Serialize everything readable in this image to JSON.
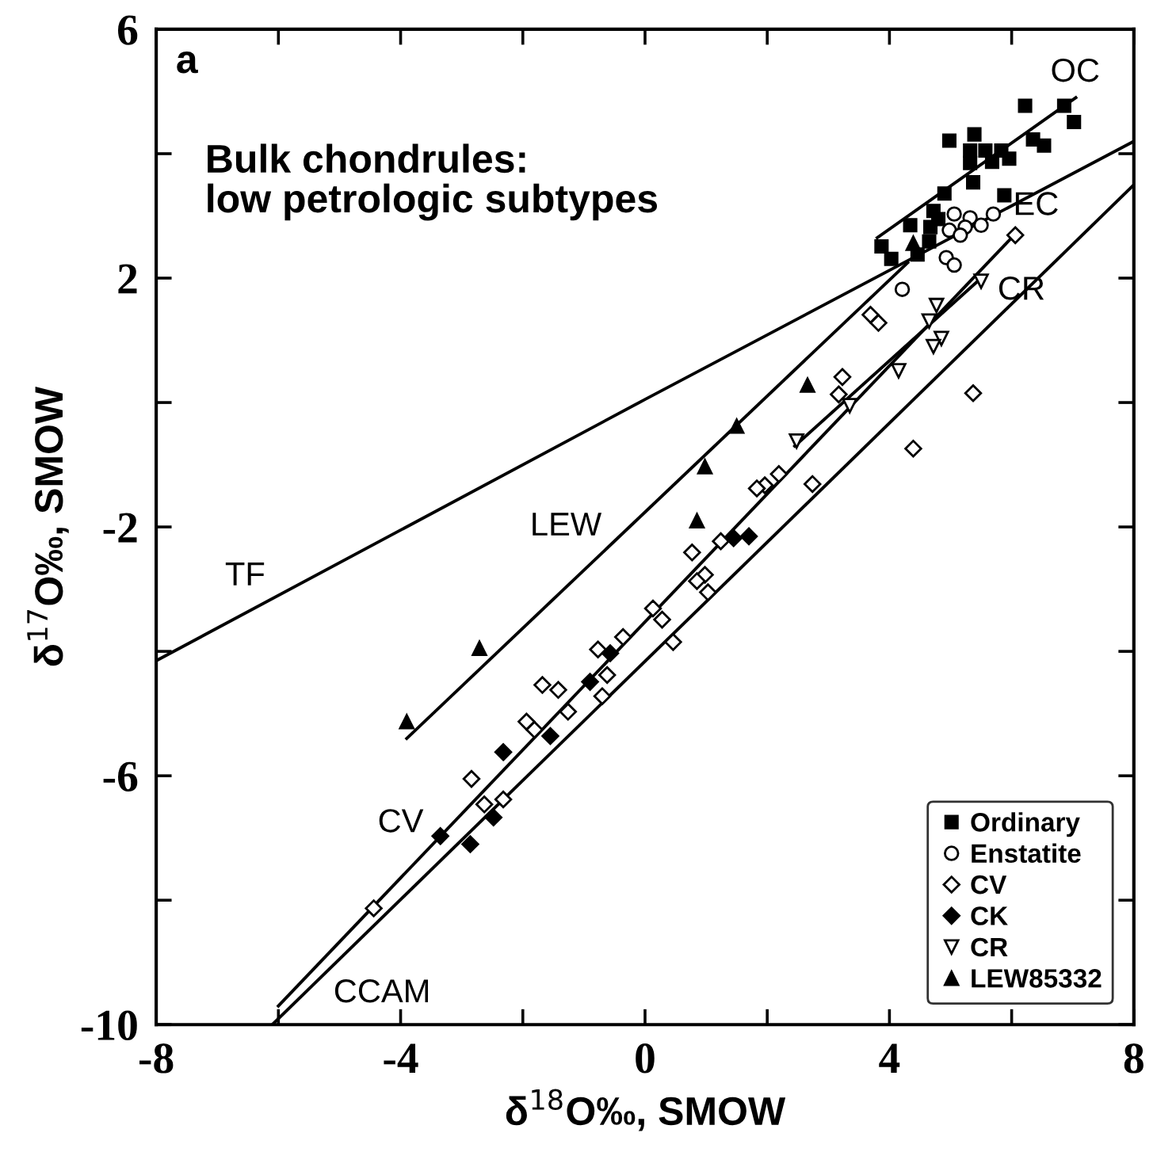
{
  "chart_data": {
    "type": "scatter",
    "title": "a",
    "xlabel": "δ$^{18}$O‰, SMOW",
    "ylabel": "δ$^{17}$O‰, SMOW",
    "xlim": [
      -8,
      8
    ],
    "ylim": [
      -10,
      6
    ],
    "xticks": [
      -8,
      {
        "value": -6,
        "label": null
      },
      -4,
      {
        "value": -2,
        "label": null
      },
      0,
      {
        "value": 2,
        "label": null
      },
      4,
      {
        "value": 6,
        "label": null
      },
      8
    ],
    "yticks": [
      -10,
      {
        "value": -8,
        "label": null
      },
      -6,
      {
        "value": -4,
        "label": null
      },
      -2,
      {
        "value": 0,
        "label": null
      },
      2,
      {
        "value": 4,
        "label": null
      },
      6
    ],
    "grid": false,
    "legend": "bottom right",
    "annotations": [
      "Bulk chondrules:\nlow petrologic subtypes",
      "OC",
      "EC",
      "CR",
      "LEW",
      "TF",
      "CV",
      "CCAM"
    ],
    "series": [
      {
        "type": "line",
        "color": "#000000",
        "marker": "none",
        "x": [
          -8,
          0,
          8
        ],
        "values": [
          -4.15,
          0.05,
          4.2
        ]
      },
      {
        "type": "line",
        "color": "#000000",
        "marker": "none",
        "x": [
          -6.1,
          8
        ],
        "values": [
          -10,
          3.5
        ]
      },
      {
        "type": "line",
        "color": "#000000",
        "marker": "none",
        "x": [
          -6.0,
          6.05
        ],
        "values": [
          -9.7,
          2.7
        ]
      },
      {
        "type": "line",
        "color": "#000000",
        "marker": "none",
        "x": [
          2.45,
          5.5
        ],
        "values": [
          -0.7,
          2.0
        ]
      },
      {
        "type": "line",
        "color": "#000000",
        "marker": "none",
        "x": [
          -3.9,
          4.3
        ],
        "values": [
          -5.4,
          2.25
        ]
      },
      {
        "type": "line",
        "color": "#000000",
        "marker": "none",
        "x": [
          3.8,
          7.05
        ],
        "values": [
          2.65,
          4.9
        ]
      },
      {
        "name": "Ordinary",
        "color": "#000000",
        "marker": "square",
        "x": [
          6.22,
          6.86,
          7.02,
          4.98,
          5.39,
          5.32,
          5.57,
          5.83,
          5.32,
          5.68,
          5.96,
          6.35,
          6.53,
          5.37,
          4.9,
          5.88,
          4.72,
          4.34,
          4.67,
          3.87,
          4.03,
          4.65,
          4.46,
          4.8
        ],
        "values": [
          4.77,
          4.77,
          4.51,
          4.21,
          4.31,
          4.05,
          4.05,
          4.05,
          3.85,
          3.87,
          3.92,
          4.23,
          4.13,
          3.54,
          3.36,
          3.33,
          3.08,
          2.85,
          2.82,
          2.51,
          2.31,
          2.59,
          2.38,
          2.95
        ]
      },
      {
        "name": "Enstatite",
        "color": "#ffffff",
        "marker": "circle",
        "x": [
          4.21,
          4.93,
          5.06,
          5.06,
          5.32,
          5.24,
          5.5,
          5.7,
          4.98,
          5.16
        ],
        "values": [
          1.82,
          2.33,
          2.21,
          3.03,
          2.97,
          2.82,
          2.85,
          3.03,
          2.77,
          2.69
        ]
      },
      {
        "name": "CV",
        "color": "#ffffff",
        "marker": "diamond",
        "x": [
          6.06,
          3.23,
          3.17,
          5.37,
          4.39,
          1.96,
          2.19,
          2.74,
          3.69,
          3.82,
          1.24,
          0.77,
          0.98,
          0.85,
          1.03,
          0.13,
          0.28,
          -0.36,
          0.46,
          -0.77,
          -0.62,
          -0.7,
          -1.68,
          -1.42,
          -1.26,
          -1.94,
          -1.81,
          -2.84,
          -2.63,
          -2.32,
          -4.44,
          1.83
        ],
        "values": [
          2.69,
          0.41,
          0.13,
          0.15,
          -0.74,
          -1.33,
          -1.15,
          -1.31,
          1.41,
          1.28,
          -2.23,
          -2.41,
          -2.77,
          -2.87,
          -3.05,
          -3.31,
          -3.49,
          -3.77,
          -3.85,
          -3.97,
          -4.38,
          -4.72,
          -4.54,
          -4.62,
          -4.97,
          -5.13,
          -5.26,
          -6.05,
          -6.46,
          -6.38,
          -8.13,
          -1.38
        ]
      },
      {
        "name": "CK",
        "color": "#000000",
        "marker": "diamond",
        "x": [
          1.45,
          1.7,
          -0.57,
          -0.9,
          -1.55,
          -2.32,
          -2.48,
          -2.86,
          -3.35
        ],
        "values": [
          -2.18,
          -2.15,
          -4.03,
          -4.49,
          -5.36,
          -5.62,
          -6.67,
          -7.1,
          -6.97
        ]
      },
      {
        "name": "CR",
        "color": "#ffffff",
        "marker": "triangle_down",
        "x": [
          4.77,
          4.65,
          4.85,
          4.72,
          4.15,
          3.35,
          2.48,
          5.5
        ],
        "values": [
          1.56,
          1.31,
          1.03,
          0.9,
          0.51,
          -0.05,
          -0.62,
          1.95
        ]
      },
      {
        "name": "LEW85332",
        "color": "#000000",
        "marker": "triangle",
        "x": [
          2.66,
          1.5,
          0.98,
          4.39,
          0.85,
          -2.71,
          -3.9
        ],
        "values": [
          0.28,
          -0.38,
          -1.03,
          2.56,
          -1.9,
          -3.95,
          -5.13
        ]
      }
    ]
  }
}
